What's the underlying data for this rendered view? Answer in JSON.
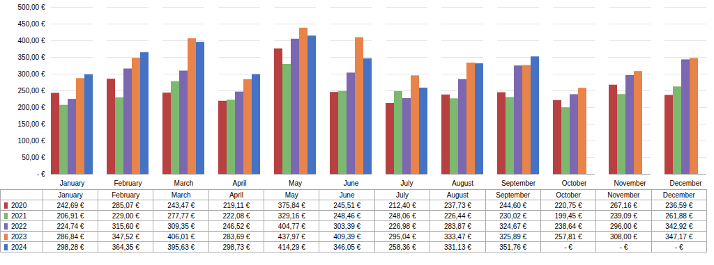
{
  "chart_data": {
    "type": "bar",
    "categories": [
      "January",
      "February",
      "March",
      "April",
      "May",
      "June",
      "July",
      "August",
      "September",
      "October",
      "November",
      "December"
    ],
    "series": [
      {
        "name": "2020",
        "color": "#B94040",
        "values": [
          242.69,
          285.07,
          243.47,
          219.11,
          375.84,
          245.51,
          212.4,
          237.73,
          244.6,
          220.75,
          267.16,
          236.59
        ],
        "value_labels": [
          "242,69 €",
          "285,07 €",
          "243,47 €",
          "219,11 €",
          "375,84 €",
          "245,51 €",
          "212,40 €",
          "237,73 €",
          "244,60 €",
          "220,75 €",
          "267,16 €",
          "236,59 €"
        ]
      },
      {
        "name": "2021",
        "color": "#7DB870",
        "values": [
          206.91,
          229.0,
          277.77,
          222.08,
          329.16,
          248.46,
          248.06,
          226.44,
          230.02,
          199.45,
          239.09,
          261.88
        ],
        "value_labels": [
          "206,91 €",
          "229,00 €",
          "277,77 €",
          "222,08 €",
          "329,16 €",
          "248,46 €",
          "248,06 €",
          "226,44 €",
          "230,02 €",
          "199,45 €",
          "239,09 €",
          "261,88 €"
        ]
      },
      {
        "name": "2022",
        "color": "#7B68B0",
        "values": [
          224.74,
          315.6,
          309.35,
          246.52,
          404.77,
          303.39,
          226.98,
          283.87,
          324.67,
          238.64,
          296.0,
          342.92
        ],
        "value_labels": [
          "224,74 €",
          "315,60 €",
          "309,35 €",
          "246,52 €",
          "404,77 €",
          "303,39 €",
          "226,98 €",
          "283,87 €",
          "324,67 €",
          "238,64 €",
          "296,00 €",
          "342,92 €"
        ]
      },
      {
        "name": "2023",
        "color": "#E8834A",
        "values": [
          286.84,
          347.52,
          406.01,
          283.69,
          437.97,
          409.39,
          295.04,
          333.47,
          325.89,
          257.81,
          308.0,
          347.17
        ],
        "value_labels": [
          "286,84 €",
          "347,52 €",
          "406,01 €",
          "283,69 €",
          "437,97 €",
          "409,39 €",
          "295,04 €",
          "333,47 €",
          "325,89 €",
          "257,81 €",
          "308,00 €",
          "347,17 €"
        ]
      },
      {
        "name": "2024",
        "color": "#4472C4",
        "values": [
          298.28,
          364.35,
          395.63,
          298.73,
          414.29,
          346.05,
          258.36,
          331.13,
          351.76,
          0,
          0,
          0
        ],
        "value_labels": [
          "298,28 €",
          "364,35 €",
          "395,63 €",
          "298,73 €",
          "414,29 €",
          "346,05 €",
          "258,36 €",
          "331,13 €",
          "351,76 €",
          "- €",
          "- €",
          "- €"
        ]
      }
    ],
    "ylim": [
      0,
      500
    ],
    "yticks": [
      {
        "value": 0,
        "label": "- €"
      },
      {
        "value": 50,
        "label": "50,00 €"
      },
      {
        "value": 100,
        "label": "100,00 €"
      },
      {
        "value": 150,
        "label": "150,00 €"
      },
      {
        "value": 200,
        "label": "200,00 €"
      },
      {
        "value": 250,
        "label": "250,00 €"
      },
      {
        "value": 300,
        "label": "300,00 €"
      },
      {
        "value": 350,
        "label": "350,00 €"
      },
      {
        "value": 400,
        "label": "400,00 €"
      },
      {
        "value": 450,
        "label": "450,00 €"
      },
      {
        "value": 500,
        "label": "500,00 €"
      }
    ],
    "grid": true
  }
}
